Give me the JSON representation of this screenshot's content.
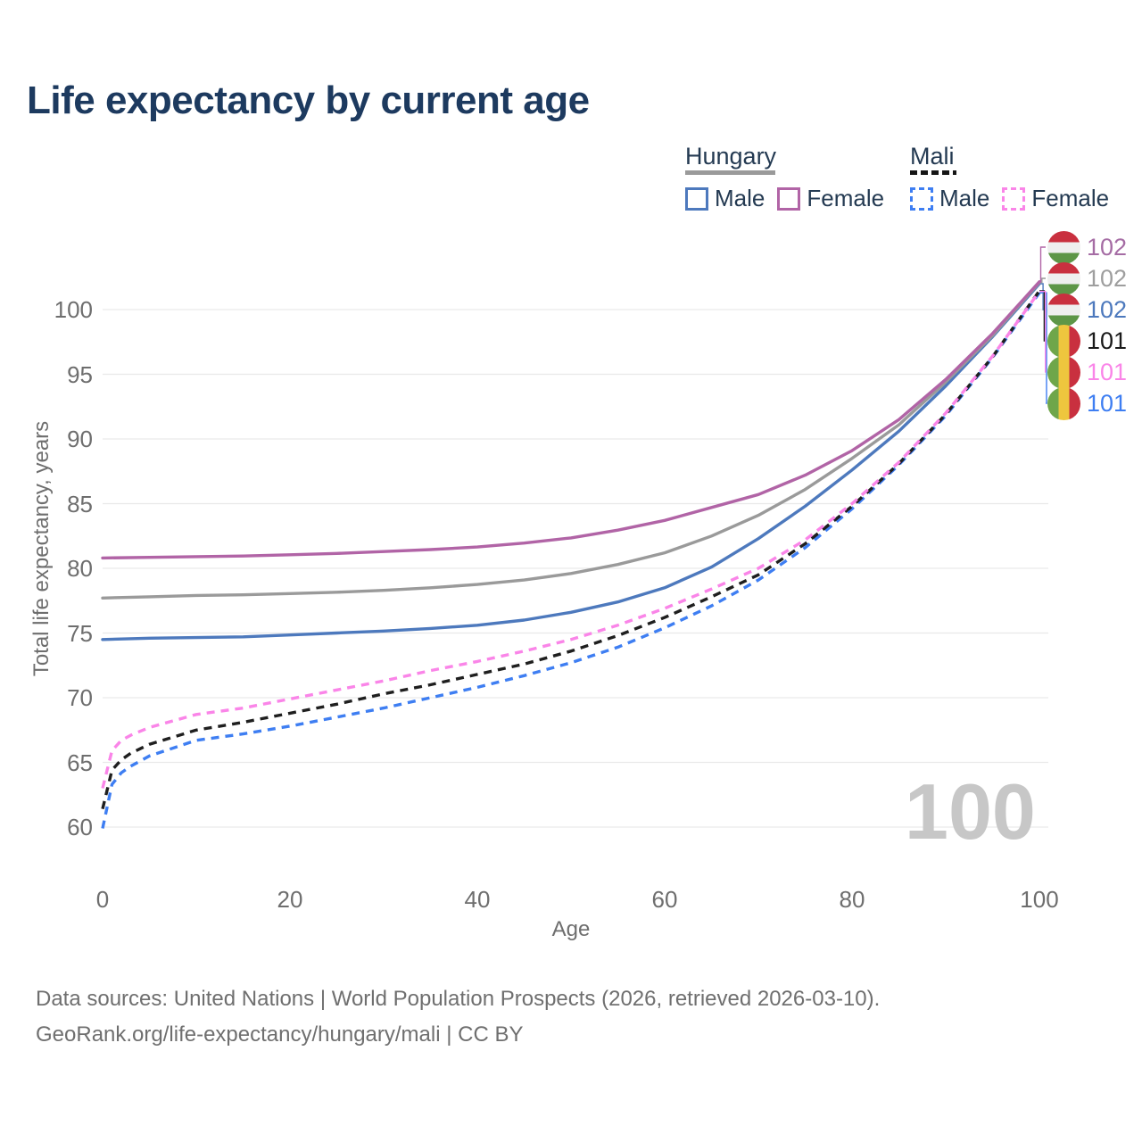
{
  "title": "Life expectancy by current age",
  "watermark": "100",
  "legend": {
    "groups": [
      {
        "name": "Hungary",
        "line_style": "solid",
        "items": [
          {
            "label": "Male",
            "color": "#4d79bd"
          },
          {
            "label": "Female",
            "color": "#b164a6"
          }
        ]
      },
      {
        "name": "Mali",
        "line_style": "dashed",
        "items": [
          {
            "label": "Male",
            "color": "#3e7ef2"
          },
          {
            "label": "Female",
            "color": "#fa85e8"
          }
        ]
      }
    ]
  },
  "flags": {
    "hungary": [
      "#c9303f",
      "#efefef",
      "#5d9647"
    ],
    "mali": [
      "#6fa64a",
      "#eec63e",
      "#c9303f"
    ]
  },
  "end_labels": [
    {
      "value": "102",
      "color": "#a56ca4",
      "flag": "hungary",
      "series": "Hungary Female"
    },
    {
      "value": "102",
      "color": "#9e9e9e",
      "flag": "hungary",
      "series": "Hungary Both sexes"
    },
    {
      "value": "102",
      "color": "#4d79bd",
      "flag": "hungary",
      "series": "Hungary Male"
    },
    {
      "value": "101",
      "color": "#1a1a1a",
      "flag": "mali",
      "series": "Mali Both sexes"
    },
    {
      "value": "101",
      "color": "#fa85e8",
      "flag": "mali",
      "series": "Mali Female"
    },
    {
      "value": "101",
      "color": "#3e7ef2",
      "flag": "mali",
      "series": "Mali Male"
    }
  ],
  "footer": {
    "line1": "Data sources: United Nations | World Population Prospects (2026, retrieved 2026-03-10).",
    "line2": "GeoRank.org/life-expectancy/hungary/mali | CC BY"
  },
  "chart_data": {
    "type": "line",
    "title": "Life expectancy by current age",
    "xlabel": "Age",
    "ylabel": "Total life expectancy, years",
    "xlim": [
      0,
      100
    ],
    "ylim": [
      59,
      103
    ],
    "x_ticks": [
      0,
      20,
      40,
      60,
      80,
      100
    ],
    "y_ticks": [
      60,
      65,
      70,
      75,
      80,
      85,
      90,
      95,
      100
    ],
    "grid": "horizontal",
    "grid_color": "#e9e9e9",
    "legend_position": "top-right",
    "series": [
      {
        "id": "hungary-male",
        "name": "Hungary Male",
        "color": "#4d79bd",
        "dash": false,
        "row": 2,
        "end_label": 102,
        "points": [
          [
            0,
            74.5
          ],
          [
            5,
            74.6
          ],
          [
            10,
            74.65
          ],
          [
            15,
            74.7
          ],
          [
            20,
            74.85
          ],
          [
            25,
            75.0
          ],
          [
            30,
            75.15
          ],
          [
            35,
            75.35
          ],
          [
            40,
            75.6
          ],
          [
            45,
            76.0
          ],
          [
            50,
            76.6
          ],
          [
            55,
            77.4
          ],
          [
            60,
            78.5
          ],
          [
            65,
            80.1
          ],
          [
            70,
            82.3
          ],
          [
            75,
            84.8
          ],
          [
            80,
            87.6
          ],
          [
            85,
            90.6
          ],
          [
            90,
            94.1
          ],
          [
            95,
            97.9
          ],
          [
            100,
            102.0
          ]
        ]
      },
      {
        "id": "hungary-both",
        "name": "Hungary Both sexes",
        "color": "#9a9a9a",
        "dash": false,
        "row": 1,
        "end_label": 102,
        "points": [
          [
            0,
            77.7
          ],
          [
            5,
            77.8
          ],
          [
            10,
            77.9
          ],
          [
            15,
            77.95
          ],
          [
            20,
            78.05
          ],
          [
            25,
            78.15
          ],
          [
            30,
            78.3
          ],
          [
            35,
            78.5
          ],
          [
            40,
            78.75
          ],
          [
            45,
            79.1
          ],
          [
            50,
            79.6
          ],
          [
            55,
            80.3
          ],
          [
            60,
            81.2
          ],
          [
            65,
            82.5
          ],
          [
            70,
            84.1
          ],
          [
            75,
            86.1
          ],
          [
            80,
            88.5
          ],
          [
            85,
            91.1
          ],
          [
            90,
            94.4
          ],
          [
            95,
            98.0
          ],
          [
            100,
            102.1
          ]
        ]
      },
      {
        "id": "hungary-female",
        "name": "Hungary Female",
        "color": "#b164a6",
        "dash": false,
        "row": 0,
        "end_label": 102,
        "points": [
          [
            0,
            80.8
          ],
          [
            5,
            80.85
          ],
          [
            10,
            80.9
          ],
          [
            15,
            80.95
          ],
          [
            20,
            81.05
          ],
          [
            25,
            81.15
          ],
          [
            30,
            81.3
          ],
          [
            35,
            81.45
          ],
          [
            40,
            81.65
          ],
          [
            45,
            81.95
          ],
          [
            50,
            82.35
          ],
          [
            55,
            82.95
          ],
          [
            60,
            83.7
          ],
          [
            65,
            84.7
          ],
          [
            70,
            85.7
          ],
          [
            75,
            87.2
          ],
          [
            80,
            89.1
          ],
          [
            85,
            91.5
          ],
          [
            90,
            94.6
          ],
          [
            95,
            98.15
          ],
          [
            100,
            102.15
          ]
        ]
      },
      {
        "id": "mali-male",
        "name": "Mali Male",
        "color": "#3e7ef2",
        "dash": true,
        "row": 5,
        "end_label": 101,
        "points": [
          [
            0,
            59.9
          ],
          [
            1,
            63.3
          ],
          [
            2,
            64.2
          ],
          [
            3,
            64.7
          ],
          [
            5,
            65.5
          ],
          [
            10,
            66.7
          ],
          [
            15,
            67.2
          ],
          [
            20,
            67.8
          ],
          [
            25,
            68.5
          ],
          [
            30,
            69.2
          ],
          [
            35,
            70.0
          ],
          [
            40,
            70.8
          ],
          [
            45,
            71.7
          ],
          [
            50,
            72.7
          ],
          [
            55,
            73.9
          ],
          [
            60,
            75.4
          ],
          [
            65,
            77.1
          ],
          [
            70,
            79.1
          ],
          [
            75,
            81.6
          ],
          [
            80,
            84.6
          ],
          [
            85,
            88.0
          ],
          [
            90,
            91.8
          ],
          [
            95,
            96.3
          ],
          [
            100,
            101.3
          ]
        ]
      },
      {
        "id": "mali-both",
        "name": "Mali Both sexes",
        "color": "#1f1f1f",
        "dash": true,
        "row": 3,
        "end_label": 101,
        "points": [
          [
            0,
            61.4
          ],
          [
            1,
            64.4
          ],
          [
            2,
            65.2
          ],
          [
            3,
            65.7
          ],
          [
            5,
            66.4
          ],
          [
            10,
            67.5
          ],
          [
            15,
            68.1
          ],
          [
            20,
            68.8
          ],
          [
            25,
            69.5
          ],
          [
            30,
            70.3
          ],
          [
            35,
            71.0
          ],
          [
            40,
            71.8
          ],
          [
            45,
            72.6
          ],
          [
            50,
            73.6
          ],
          [
            55,
            74.8
          ],
          [
            60,
            76.2
          ],
          [
            65,
            77.8
          ],
          [
            70,
            79.5
          ],
          [
            75,
            81.9
          ],
          [
            80,
            84.8
          ],
          [
            85,
            88.1
          ],
          [
            90,
            91.9
          ],
          [
            95,
            96.35
          ],
          [
            100,
            101.45
          ]
        ]
      },
      {
        "id": "mali-female",
        "name": "Mali Female",
        "color": "#fa85e8",
        "dash": true,
        "row": 4,
        "end_label": 101,
        "points": [
          [
            0,
            63.0
          ],
          [
            1,
            65.9
          ],
          [
            2,
            66.7
          ],
          [
            3,
            67.1
          ],
          [
            5,
            67.7
          ],
          [
            10,
            68.7
          ],
          [
            15,
            69.2
          ],
          [
            20,
            69.9
          ],
          [
            25,
            70.6
          ],
          [
            30,
            71.3
          ],
          [
            35,
            72.1
          ],
          [
            40,
            72.8
          ],
          [
            45,
            73.6
          ],
          [
            50,
            74.5
          ],
          [
            55,
            75.6
          ],
          [
            60,
            76.9
          ],
          [
            65,
            78.4
          ],
          [
            70,
            80.0
          ],
          [
            75,
            82.2
          ],
          [
            80,
            85.0
          ],
          [
            85,
            88.2
          ],
          [
            90,
            92.0
          ],
          [
            95,
            96.4
          ],
          [
            100,
            101.4
          ]
        ]
      }
    ]
  }
}
